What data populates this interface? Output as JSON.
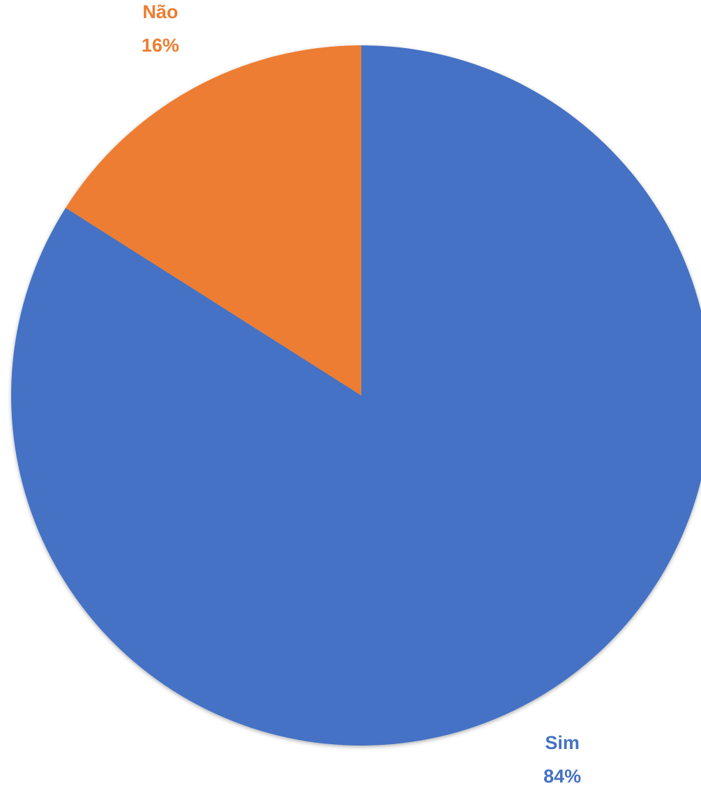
{
  "chart_data": {
    "type": "pie",
    "categories": [
      "Sim",
      "Não"
    ],
    "values": [
      84,
      16
    ],
    "value_labels": [
      "84%",
      "16%"
    ],
    "colors": [
      "#4472c4",
      "#ed7d31"
    ]
  }
}
